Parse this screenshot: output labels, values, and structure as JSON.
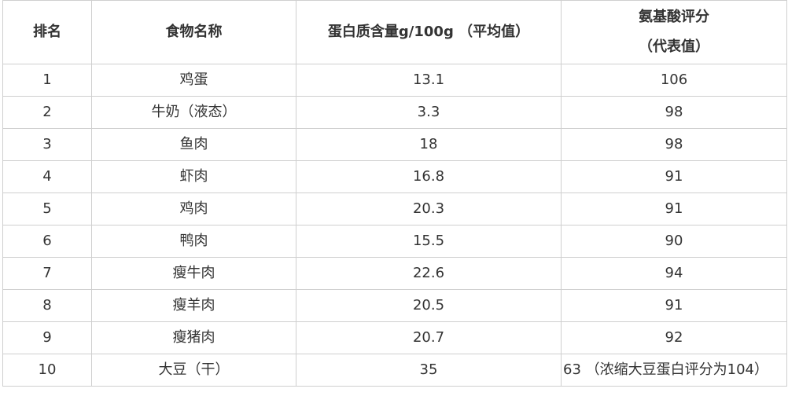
{
  "table": {
    "headers": {
      "rank": "排名",
      "food": "食物名称",
      "protein": "蛋白质含量g/100g （平均值）",
      "score_line1": "氨基酸评分",
      "score_line2": "（代表值）"
    },
    "rows": [
      {
        "rank": "1",
        "food": "鸡蛋",
        "protein": "13.1",
        "score": "106"
      },
      {
        "rank": "2",
        "food": "牛奶（液态）",
        "protein": "3.3",
        "score": "98"
      },
      {
        "rank": "3",
        "food": "鱼肉",
        "protein": "18",
        "score": "98"
      },
      {
        "rank": "4",
        "food": "虾肉",
        "protein": "16.8",
        "score": "91"
      },
      {
        "rank": "5",
        "food": "鸡肉",
        "protein": "20.3",
        "score": "91"
      },
      {
        "rank": "6",
        "food": "鸭肉",
        "protein": "15.5",
        "score": "90"
      },
      {
        "rank": "7",
        "food": "瘦牛肉",
        "protein": "22.6",
        "score": "94"
      },
      {
        "rank": "8",
        "food": "瘦羊肉",
        "protein": "20.5",
        "score": "91"
      },
      {
        "rank": "9",
        "food": "瘦猪肉",
        "protein": "20.7",
        "score": "92"
      },
      {
        "rank": "10",
        "food": "大豆（干）",
        "protein": "35",
        "score": "63 （浓缩大豆蛋白评分为104）"
      }
    ]
  }
}
